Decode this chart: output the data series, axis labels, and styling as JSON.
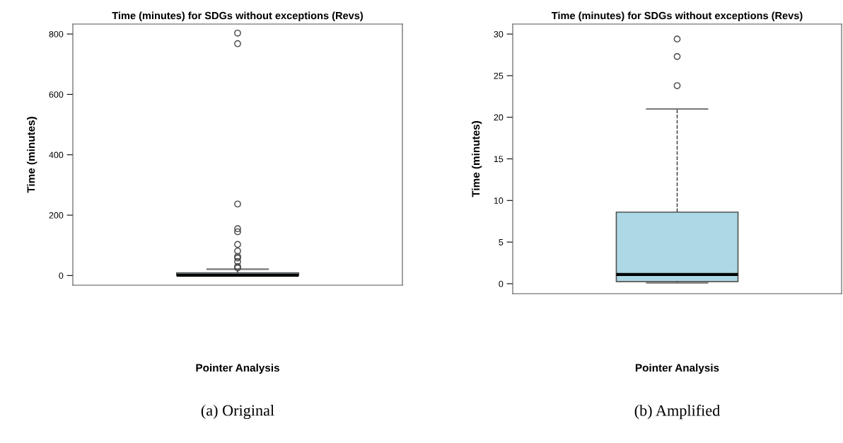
{
  "chart_data": [
    {
      "type": "box",
      "title": "Time (minutes) for SDGs without exceptions (Revs)",
      "xlabel": "Pointer Analysis",
      "ylabel": "Time (minutes)",
      "categories": [
        null
      ],
      "tick_labels": "y",
      "color": "#add8e6",
      "boxes": [
        {
          "low": 0,
          "q1": 0.3,
          "median": 1.1,
          "q3": 8.6,
          "high": 21,
          "outliers": [
            803,
            768,
            237,
            155,
            145,
            103,
            81,
            63,
            58,
            46,
            30,
            25
          ]
        }
      ],
      "ylim": [
        -32,
        833
      ],
      "yticks": [
        0,
        200,
        400,
        600,
        800
      ],
      "annotations": [
        "(a) Original"
      ]
    },
    {
      "type": "box",
      "title": "Time (minutes) for SDGs without exceptions (Revs)",
      "xlabel": "Pointer Analysis",
      "ylabel": "Time (minutes)",
      "categories": [
        null
      ],
      "tick_labels": "y",
      "color": "#add8e6",
      "boxes": [
        {
          "low": 0.1,
          "q1": 0.25,
          "median": 1.1,
          "q3": 8.6,
          "high": 21,
          "outliers": [
            29.4,
            27.3,
            23.8
          ]
        }
      ],
      "ylim": [
        -1.2,
        31.2
      ],
      "yticks": [
        0,
        5,
        10,
        15,
        20,
        25,
        30
      ],
      "annotations": [
        "(b) Amplified"
      ]
    }
  ]
}
